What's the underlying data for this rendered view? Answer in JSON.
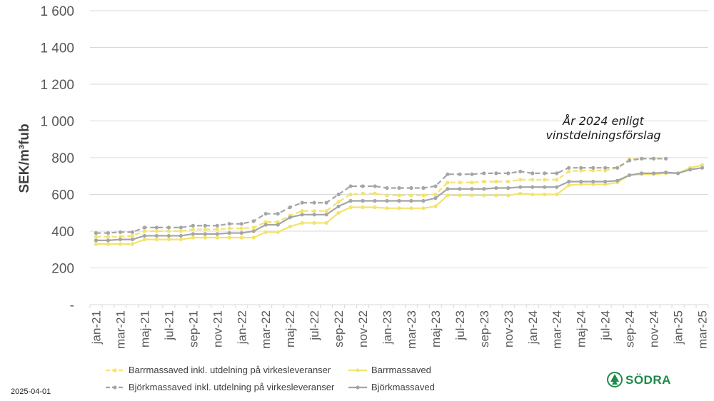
{
  "chart_data": {
    "type": "line",
    "ylabel": "SEK/m³fub",
    "ylim": [
      0,
      1600
    ],
    "y_ticks": [
      {
        "value": 0,
        "label": "-"
      },
      {
        "value": 200,
        "label": "200"
      },
      {
        "value": 400,
        "label": "400"
      },
      {
        "value": 600,
        "label": "600"
      },
      {
        "value": 800,
        "label": "800"
      },
      {
        "value": 1000,
        "label": "1 000"
      },
      {
        "value": 1200,
        "label": "1 200"
      },
      {
        "value": 1400,
        "label": "1 400"
      },
      {
        "value": 1600,
        "label": "1 600"
      }
    ],
    "grid": "horizontal",
    "legend_position": "bottom",
    "categories": [
      "jan-21",
      "feb-21",
      "mar-21",
      "apr-21",
      "maj-21",
      "jun-21",
      "jul-21",
      "aug-21",
      "sep-21",
      "okt-21",
      "nov-21",
      "dec-21",
      "jan-22",
      "feb-22",
      "mar-22",
      "apr-22",
      "maj-22",
      "jun-22",
      "jul-22",
      "aug-22",
      "sep-22",
      "okt-22",
      "nov-22",
      "dec-22",
      "jan-23",
      "feb-23",
      "mar-23",
      "apr-23",
      "maj-23",
      "jun-23",
      "jul-23",
      "aug-23",
      "sep-23",
      "okt-23",
      "nov-23",
      "dec-23",
      "jan-24",
      "feb-24",
      "mar-24",
      "apr-24",
      "maj-24",
      "jun-24",
      "jul-24",
      "aug-24",
      "sep-24",
      "okt-24",
      "nov-24",
      "dec-24",
      "jan-25",
      "feb-25",
      "mar-25"
    ],
    "visible_tick_labels": [
      "jan-21",
      "mar-21",
      "maj-21",
      "jul-21",
      "sep-21",
      "nov-21",
      "jan-22",
      "mar-22",
      "maj-22",
      "jul-22",
      "sep-22",
      "nov-22",
      "jan-23",
      "mar-23",
      "maj-23",
      "jul-23",
      "sep-23",
      "nov-23",
      "jan-24",
      "mar-24",
      "maj-24",
      "jul-24",
      "sep-24",
      "nov-24",
      "jan-25",
      "mar-25"
    ],
    "series": [
      {
        "name": "Barrmassaved inkl. utdelning på virkesleveranser",
        "color": "#f2e46b",
        "dash": true,
        "values": [
          370,
          370,
          370,
          375,
          400,
          400,
          400,
          400,
          410,
          410,
          410,
          415,
          415,
          420,
          450,
          450,
          485,
          510,
          510,
          510,
          560,
          600,
          605,
          605,
          595,
          595,
          595,
          595,
          600,
          665,
          665,
          665,
          670,
          670,
          670,
          680,
          680,
          680,
          680,
          725,
          730,
          730,
          730,
          745,
          790,
          795,
          795,
          795,
          null,
          null,
          null
        ]
      },
      {
        "name": "Barrmassaved",
        "color": "#f2e46b",
        "dash": false,
        "values": [
          330,
          330,
          330,
          330,
          355,
          355,
          355,
          355,
          365,
          365,
          365,
          365,
          365,
          365,
          395,
          395,
          425,
          445,
          445,
          445,
          500,
          530,
          530,
          530,
          525,
          525,
          525,
          525,
          535,
          595,
          595,
          595,
          595,
          595,
          595,
          605,
          600,
          600,
          600,
          650,
          655,
          655,
          655,
          665,
          705,
          710,
          710,
          715,
          715,
          745,
          760
        ]
      },
      {
        "name": "Björkmassaved inkl. utdelning på virkesleveranser",
        "color": "#a5a5a5",
        "dash": true,
        "values": [
          390,
          390,
          395,
          395,
          420,
          420,
          420,
          420,
          430,
          430,
          430,
          440,
          440,
          455,
          495,
          495,
          530,
          555,
          555,
          555,
          600,
          645,
          645,
          645,
          635,
          635,
          635,
          635,
          645,
          710,
          710,
          710,
          715,
          715,
          715,
          725,
          715,
          715,
          715,
          745,
          745,
          745,
          745,
          745,
          785,
          795,
          795,
          795,
          null,
          null,
          null
        ]
      },
      {
        "name": "Björkmassaved",
        "color": "#a5a5a5",
        "dash": false,
        "values": [
          350,
          350,
          355,
          355,
          375,
          375,
          375,
          375,
          385,
          385,
          385,
          390,
          390,
          400,
          435,
          435,
          475,
          490,
          490,
          490,
          535,
          565,
          565,
          565,
          565,
          565,
          565,
          565,
          580,
          630,
          630,
          630,
          630,
          635,
          635,
          640,
          640,
          640,
          640,
          670,
          670,
          670,
          670,
          675,
          705,
          715,
          715,
          720,
          715,
          735,
          745
        ]
      }
    ],
    "annotation": "År 2024 enligt vinstdelningsförslag"
  },
  "annotation_lines": [
    "År 2024 enligt",
    "vinstdelningsförslag"
  ],
  "footer": {
    "date": "2025-04-01",
    "logo_text": "SÖDRA"
  }
}
